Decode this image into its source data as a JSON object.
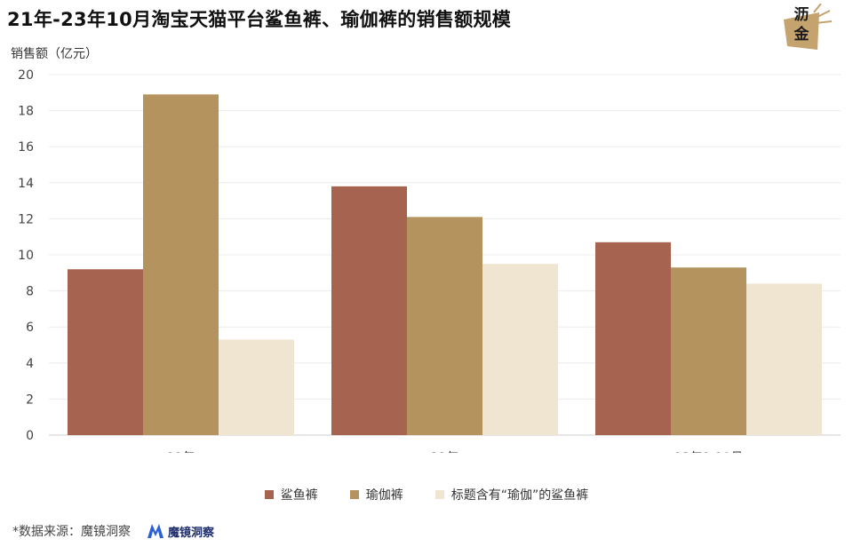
{
  "title": "21年-23年10月淘宝天猫平台鲨鱼裤、瑜伽裤的销售额规模",
  "logo_text": "沥金",
  "source_text": "*数据来源：魔镜洞察",
  "source_logo_text": "魔镜洞察",
  "chart_data": {
    "type": "bar",
    "ylabel": "销售额（亿元）",
    "ylim": [
      0,
      20
    ],
    "yticks": [
      "0",
      "2",
      "4",
      "6",
      "8",
      "10",
      "12",
      "14",
      "16",
      "18",
      "20"
    ],
    "categories": [
      "21年",
      "22年",
      "23年1-10月"
    ],
    "grid": true,
    "legend_position": "bottom",
    "series": [
      {
        "name": "鲨鱼裤",
        "color": "#A6634F",
        "values": [
          9.2,
          13.8,
          10.7
        ]
      },
      {
        "name": "瑜伽裤",
        "color": "#B5935E",
        "values": [
          18.9,
          12.1,
          9.3
        ]
      },
      {
        "name": "标题含有“瑜伽”的鲨鱼裤",
        "color": "#F0E5D0",
        "values": [
          5.3,
          9.5,
          8.4
        ]
      }
    ]
  }
}
